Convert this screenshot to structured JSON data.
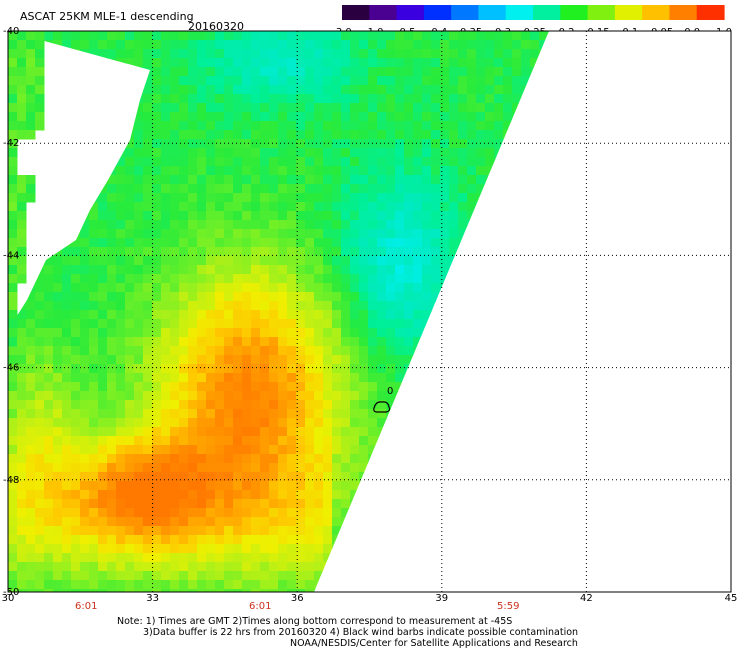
{
  "title": {
    "product": "ASCAT 25KM MLE-1 descending",
    "date": "20160320"
  },
  "colorbar": {
    "labels": [
      "-3.0",
      "-1.0",
      "-0.5",
      "-0.4",
      "-0.35",
      "-0.3",
      "-0.25",
      "-0.2",
      "-0.15",
      "-0.1",
      "-0.05",
      "0.0",
      "1.0"
    ],
    "colors": [
      "#2a0040",
      "#4a0090",
      "#3a00e0",
      "#0030ff",
      "#0078ff",
      "#00c0ff",
      "#00f0f0",
      "#00f0a0",
      "#20f020",
      "#80f010",
      "#e0f000",
      "#ffc000",
      "#ff8000",
      "#ff3000"
    ]
  },
  "axes": {
    "x_ticks": [
      "30",
      "33",
      "36",
      "39",
      "42",
      "45"
    ],
    "y_ticks": [
      "-40",
      "-42",
      "-44",
      "-46",
      "-48",
      "-50"
    ],
    "lon_range": [
      30,
      45
    ],
    "lat_range": [
      -50,
      -40
    ],
    "grid": true
  },
  "times": [
    "6:01",
    "6:01",
    "5:59"
  ],
  "marker_label": "0",
  "notes": [
    "Note: 1) Times are GMT 2)Times along bottom correspond to measurement at -45S",
    "3)Data buffer is 22 hrs from 20160320 4) Black wind barbs indicate possible contamination",
    "NOAA/NESDIS/Center for Satellite Applications and Research"
  ]
}
